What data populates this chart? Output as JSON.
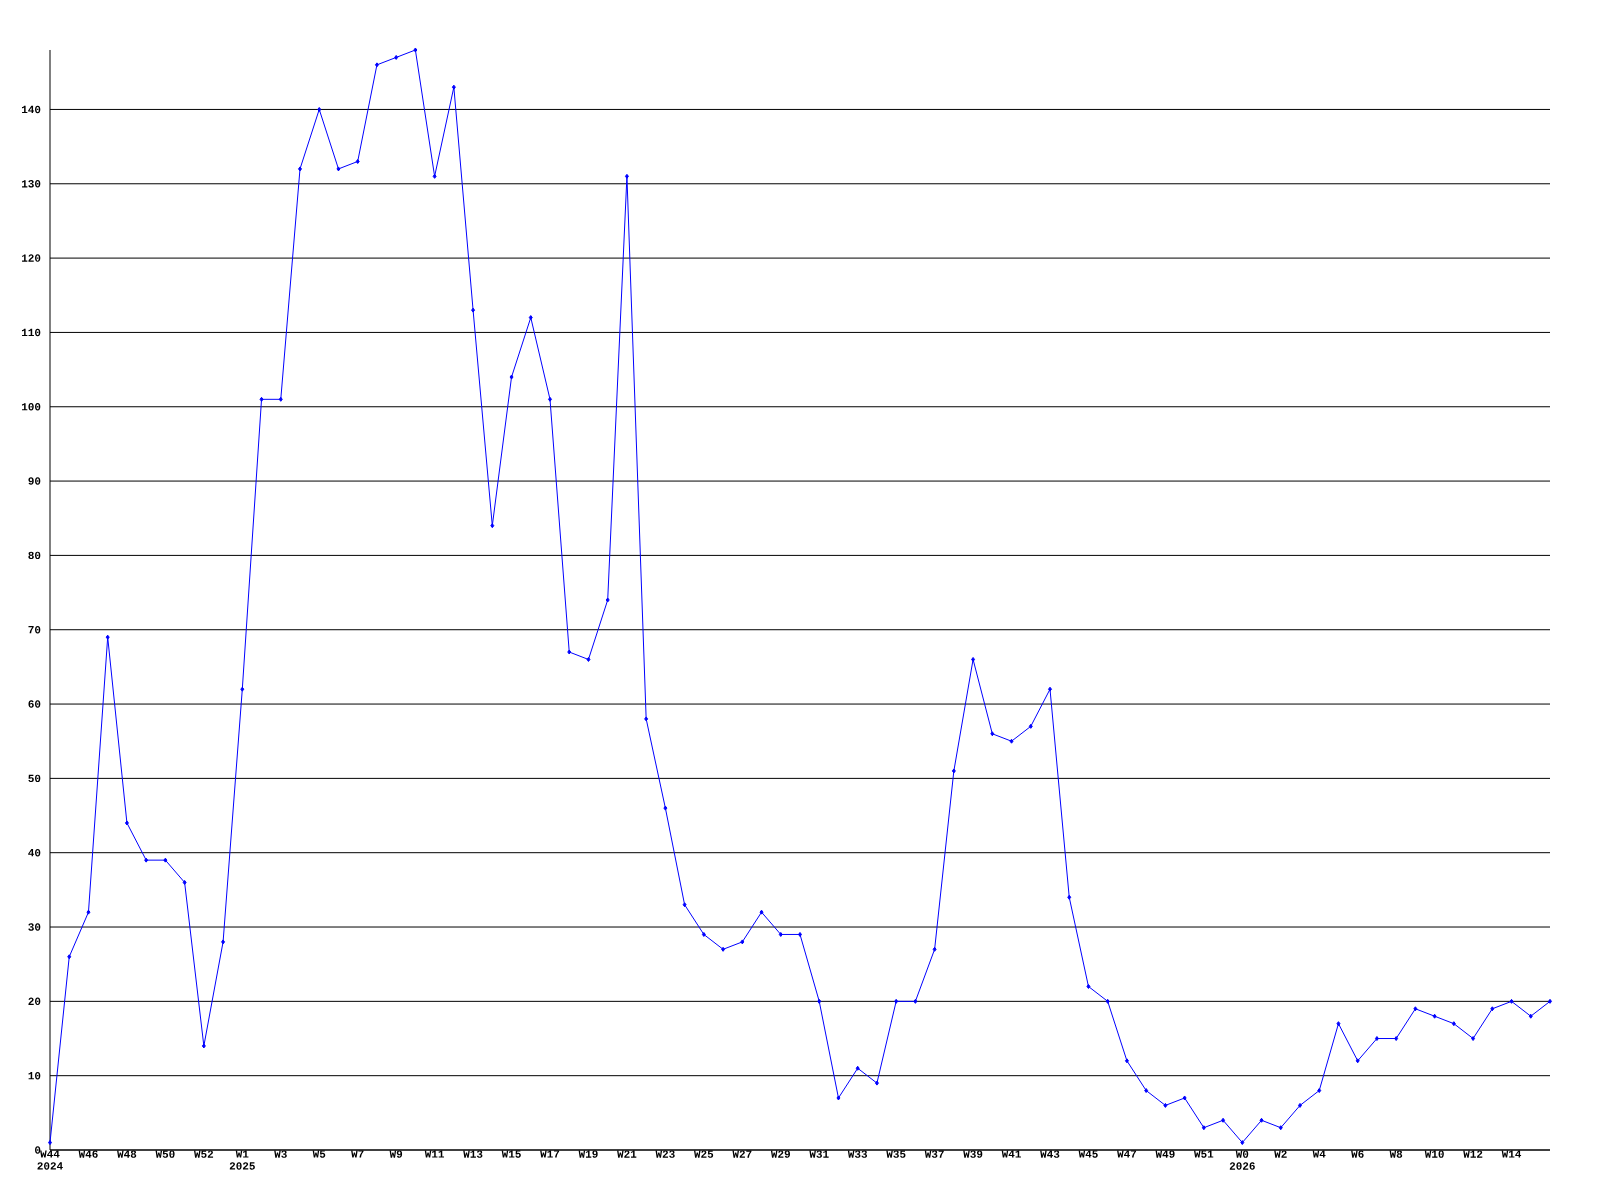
{
  "chart_data": {
    "type": "line",
    "categories": [
      "W44 2024",
      null,
      "W46",
      null,
      "W48",
      null,
      "W50",
      null,
      "W52",
      null,
      "W1 2025",
      null,
      "W3",
      null,
      "W5",
      null,
      "W7",
      null,
      "W9",
      null,
      "W11",
      null,
      "W13",
      null,
      "W15",
      null,
      "W17",
      null,
      "W19",
      null,
      "W21",
      null,
      "W23",
      null,
      "W25",
      null,
      "W27",
      null,
      "W29",
      null,
      "W31",
      null,
      "W33",
      null,
      "W35",
      null,
      "W37",
      null,
      "W39",
      null,
      "W41",
      null,
      "W43",
      null,
      "W45",
      null,
      "W47",
      null,
      "W49",
      null,
      "W51",
      null,
      "W0 2026",
      null,
      "W2",
      null,
      "W4",
      null,
      "W6",
      null,
      "W8",
      null,
      "W10",
      null,
      "W12",
      null,
      "W14",
      null,
      null
    ],
    "values": [
      1,
      26,
      32,
      69,
      44,
      39,
      39,
      36,
      14,
      28,
      62,
      101,
      101,
      132,
      140,
      132,
      133,
      146,
      147,
      148,
      131,
      143,
      113,
      84,
      104,
      112,
      101,
      67,
      66,
      74,
      131,
      58,
      46,
      33,
      29,
      27,
      28,
      32,
      29,
      29,
      20,
      7,
      11,
      9,
      20,
      20,
      27,
      51,
      66,
      56,
      55,
      57,
      62,
      34,
      22,
      20,
      12,
      8,
      6,
      7,
      3,
      4,
      1,
      4,
      3,
      6,
      8,
      17,
      12,
      15,
      15,
      19,
      18,
      17,
      15,
      19,
      20,
      18,
      20
    ],
    "color": "#0000ff",
    "ylim": [
      0,
      148
    ],
    "yticks": [
      0,
      10,
      20,
      30,
      40,
      50,
      60,
      70,
      80,
      90,
      100,
      110,
      120,
      130,
      140
    ],
    "grid": "y",
    "marker": "diamond",
    "line_style": "solid"
  }
}
